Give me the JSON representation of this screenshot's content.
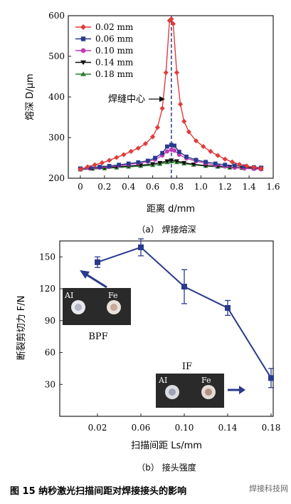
{
  "caption": "图 15    纳秒激光扫描间距对焊接接头的影响",
  "watermark": "焊接科技网",
  "chart_data": [
    {
      "type": "line",
      "subtitle": "（a） 焊接熔深",
      "xlabel": "距离 d/mm",
      "ylabel": "熔深 D/μm",
      "xlim": [
        -0.1,
        1.6
      ],
      "ylim": [
        200,
        600
      ],
      "xticks": [
        "0",
        "0.2",
        "0.4",
        "0.6",
        "0.8",
        "1.0",
        "1.2",
        "1.4",
        "1.6"
      ],
      "yticks": [
        "200",
        "300",
        "400",
        "500",
        "600"
      ],
      "annotation": "焊缝中心",
      "center_line_x": 0.755,
      "legend_position": "top-left",
      "grid": false,
      "series": [
        {
          "name": "0.02 mm",
          "color": "#e23b3b",
          "marker": "diamond",
          "x": [
            0,
            0.06,
            0.12,
            0.18,
            0.24,
            0.3,
            0.36,
            0.42,
            0.48,
            0.54,
            0.6,
            0.64,
            0.68,
            0.71,
            0.74,
            0.755,
            0.77,
            0.8,
            0.83,
            0.86,
            0.9,
            0.96,
            1.02,
            1.08,
            1.14,
            1.2,
            1.26,
            1.32,
            1.38,
            1.44,
            1.5
          ],
          "y": [
            222,
            228,
            233,
            238,
            244,
            251,
            258,
            266,
            274,
            285,
            302,
            325,
            372,
            460,
            588,
            592,
            580,
            460,
            382,
            340,
            314,
            292,
            278,
            266,
            256,
            247,
            240,
            234,
            230,
            227,
            224
          ]
        },
        {
          "name": "0.06 mm",
          "color": "#2a3a8c",
          "marker": "square",
          "x": [
            0,
            0.08,
            0.16,
            0.24,
            0.32,
            0.4,
            0.48,
            0.56,
            0.62,
            0.68,
            0.72,
            0.755,
            0.78,
            0.82,
            0.88,
            0.96,
            1.04,
            1.12,
            1.2,
            1.28,
            1.36,
            1.44,
            1.5
          ],
          "y": [
            224,
            226,
            228,
            230,
            233,
            236,
            239,
            243,
            250,
            262,
            278,
            282,
            280,
            265,
            253,
            245,
            240,
            236,
            233,
            231,
            229,
            227,
            226
          ]
        },
        {
          "name": "0.10 mm",
          "color": "#c23ab5",
          "marker": "circle",
          "x": [
            0,
            0.08,
            0.16,
            0.24,
            0.32,
            0.4,
            0.48,
            0.56,
            0.62,
            0.68,
            0.72,
            0.755,
            0.78,
            0.82,
            0.88,
            0.96,
            1.04,
            1.12,
            1.2,
            1.28,
            1.36,
            1.44,
            1.5
          ],
          "y": [
            222,
            224,
            226,
            228,
            231,
            234,
            237,
            241,
            246,
            256,
            266,
            270,
            268,
            258,
            249,
            242,
            237,
            232,
            229,
            226,
            224,
            223,
            222
          ]
        },
        {
          "name": "0.14 mm",
          "color": "#111111",
          "marker": "triangle-down",
          "x": [
            0,
            0.1,
            0.2,
            0.3,
            0.4,
            0.5,
            0.6,
            0.66,
            0.72,
            0.755,
            0.8,
            0.86,
            0.94,
            1.04,
            1.14,
            1.24,
            1.34,
            1.44,
            1.5
          ],
          "y": [
            222,
            224,
            226,
            228,
            230,
            232,
            235,
            238,
            242,
            244,
            242,
            238,
            234,
            231,
            229,
            227,
            226,
            225,
            224
          ]
        },
        {
          "name": "0.18 mm",
          "color": "#2e7d32",
          "marker": "triangle-up",
          "x": [
            0,
            0.1,
            0.2,
            0.3,
            0.4,
            0.5,
            0.6,
            0.66,
            0.72,
            0.755,
            0.8,
            0.86,
            0.94,
            1.04,
            1.14,
            1.24,
            1.34,
            1.44,
            1.5
          ],
          "y": [
            221,
            223,
            224,
            226,
            228,
            230,
            232,
            235,
            239,
            241,
            239,
            236,
            233,
            230,
            228,
            226,
            225,
            224,
            223
          ]
        }
      ]
    },
    {
      "type": "line",
      "subtitle": "（b） 接头强度",
      "xlabel": "扫描间距 Ls/mm",
      "ylabel": "断裂剪切力 F/N",
      "ylim": [
        0,
        165
      ],
      "categories": [
        "0.02",
        "0.06",
        "0.10",
        "0.14",
        "0.18"
      ],
      "yticks": [
        "30",
        "60",
        "90",
        "120",
        "150"
      ],
      "grid": false,
      "series": [
        {
          "color": "#2a3a8c",
          "marker": "square",
          "values": [
            145,
            159,
            122,
            102,
            36
          ],
          "err": [
            5,
            8,
            16,
            7,
            9
          ]
        }
      ],
      "annotations": [
        {
          "text": "BPF",
          "photo_labels": [
            "AI",
            "Fe"
          ]
        },
        {
          "text": "IF",
          "photo_labels": [
            "AI",
            "Fe"
          ]
        }
      ]
    }
  ]
}
